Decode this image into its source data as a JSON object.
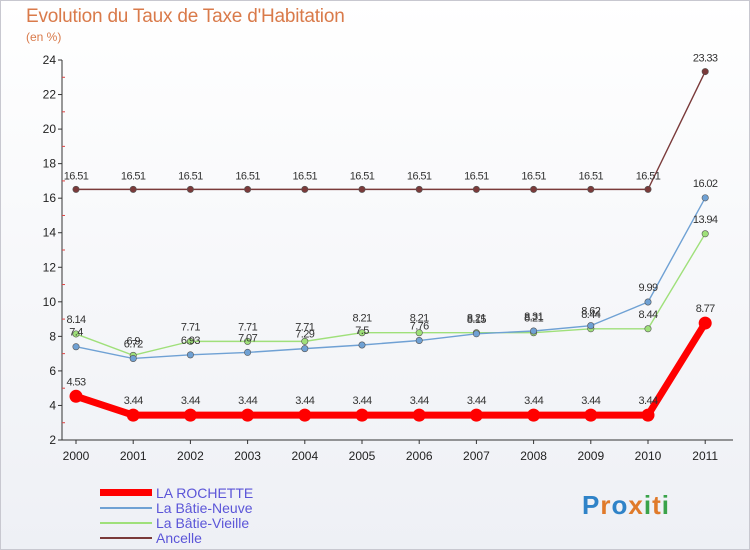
{
  "chart_data": {
    "type": "line",
    "title": "Evolution du Taux de Taxe d'Habitation",
    "subtitle": "(en %)",
    "xlabel": "",
    "ylabel": "",
    "ylim": [
      2,
      24
    ],
    "yticks": [
      2,
      4,
      6,
      8,
      10,
      12,
      14,
      16,
      18,
      20,
      22,
      24
    ],
    "categories": [
      "2000",
      "2001",
      "2002",
      "2003",
      "2004",
      "2005",
      "2006",
      "2007",
      "2008",
      "2009",
      "2010",
      "2011"
    ],
    "series": [
      {
        "name": "LA ROCHETTE",
        "color": "#ff0000",
        "values": [
          4.53,
          3.44,
          3.44,
          3.44,
          3.44,
          3.44,
          3.44,
          3.44,
          3.44,
          3.44,
          3.44,
          8.77
        ],
        "labels": [
          "4.53",
          "3.44",
          "3.44",
          "3.44",
          "3.44",
          "3.44",
          "3.44",
          "3.44",
          "3.44",
          "3.44",
          "3.44",
          "8.77"
        ]
      },
      {
        "name": "La Bâtie-Neuve",
        "color": "#6fa1d4",
        "values": [
          7.4,
          6.72,
          6.93,
          7.07,
          7.29,
          7.5,
          7.76,
          8.15,
          8.31,
          8.62,
          9.99,
          16.02
        ],
        "labels": [
          "7.4",
          "6.72",
          "6.93",
          "7.07",
          "7.29",
          "7.5",
          "7.76",
          "8.15",
          "8.31",
          "8.62",
          "9.99",
          "16.02"
        ]
      },
      {
        "name": "La Bâtie-Vieille",
        "color": "#9fe07a",
        "values": [
          8.14,
          6.9,
          7.71,
          7.71,
          7.71,
          8.21,
          8.21,
          8.21,
          8.21,
          8.44,
          8.44,
          13.94
        ],
        "labels": [
          "8.14",
          "6.9",
          "7.71",
          "7.71",
          "7.71",
          "8.21",
          "8.21",
          "8.21",
          "8.21",
          "8.44",
          "8.44",
          "13.94"
        ]
      },
      {
        "name": "Ancelle",
        "color": "#7a3a3a",
        "values": [
          16.51,
          16.51,
          16.51,
          16.51,
          16.51,
          16.51,
          16.51,
          16.51,
          16.51,
          16.51,
          16.51,
          23.33
        ],
        "labels": [
          "16.51",
          "16.51",
          "16.51",
          "16.51",
          "16.51",
          "16.51",
          "16.51",
          "16.51",
          "16.51",
          "16.51",
          "16.51",
          "23.33"
        ]
      }
    ]
  },
  "logo": {
    "text": "Proxiti",
    "colors": [
      "#2f83c8",
      "#e07a2a",
      "#2f83c8",
      "#e07a2a",
      "#3aa34a",
      "#e07a2a",
      "#3aa34a"
    ]
  }
}
